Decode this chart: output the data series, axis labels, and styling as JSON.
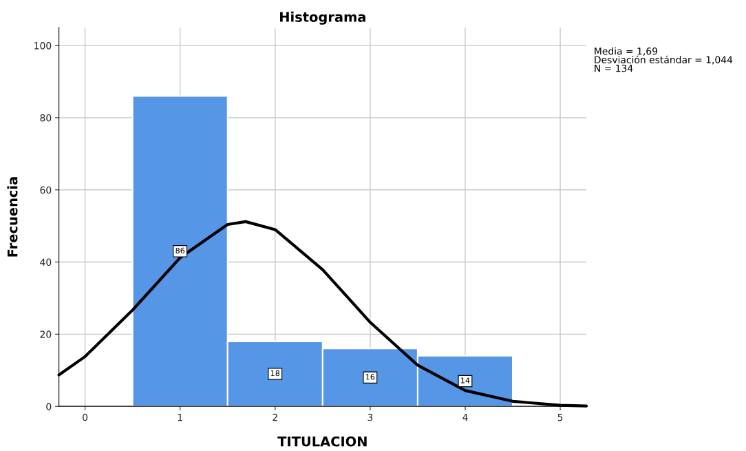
{
  "chart_data": {
    "type": "histogram",
    "title": "Histograma",
    "xlabel": "TITULACION",
    "ylabel": "Frecuencia",
    "bins": [
      0.5,
      1.5,
      2.5,
      3.5,
      4.5
    ],
    "values": [
      86,
      18,
      16,
      14
    ],
    "color": "#5596e6",
    "value_labels": [
      "86",
      "18",
      "16",
      "14"
    ],
    "series": [
      {
        "type": "line",
        "color": "#000000",
        "x": [
          -0.275,
          0,
          0.5,
          1,
          1.5,
          1.69,
          2,
          2.5,
          3,
          3.5,
          4,
          4.5,
          5,
          5.275
        ],
        "values": [
          8.7,
          13.8,
          26.7,
          41.2,
          50.4,
          51.2,
          49.0,
          37.9,
          23.3,
          11.4,
          4.4,
          1.4,
          0.3,
          0.1
        ]
      }
    ],
    "xlim": [
      -0.275,
      5.275
    ],
    "ylim": [
      0,
      105
    ],
    "xticks": [
      0,
      1,
      2,
      3,
      4,
      5
    ],
    "yticks": [
      0,
      20,
      40,
      60,
      80,
      100
    ],
    "grid": true,
    "annotations": [
      "Media = 1,69",
      "Desviación estándar = 1,044",
      "N = 134"
    ]
  }
}
